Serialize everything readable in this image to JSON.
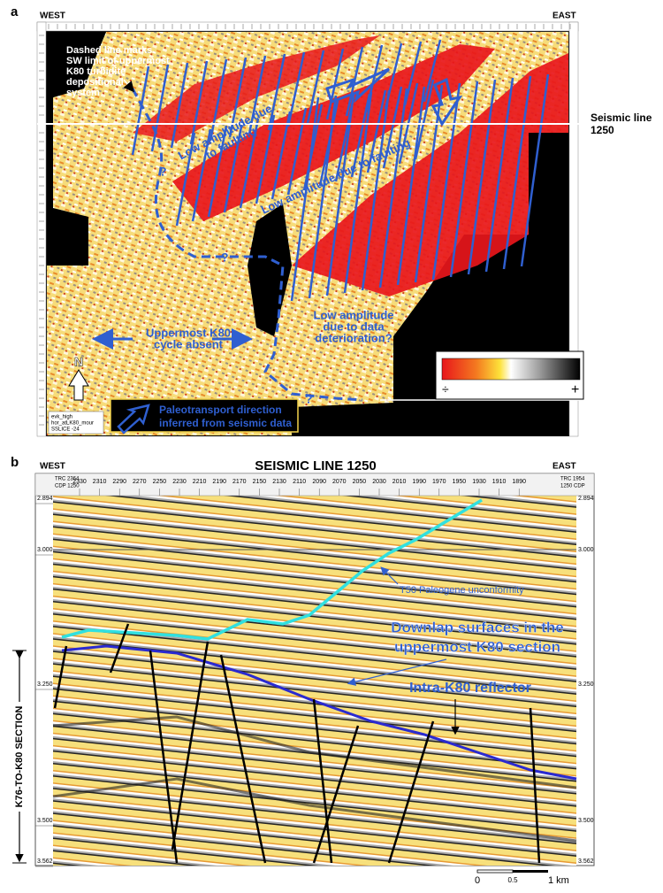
{
  "panel_a": {
    "label": "a",
    "west": "WEST",
    "east": "EAST",
    "note": [
      "Dashed line marks",
      "SW limit of uppermost",
      "K80 turbidite",
      "depositional",
      "system"
    ],
    "faulting_labels": [
      "Low amplitude due",
      "to faulting",
      "Low amplitude due to faulting"
    ],
    "seismic_line_label": [
      "Seismic line",
      "1250"
    ],
    "absent_label": [
      "Uppermost K80",
      "cycle absent"
    ],
    "deterioration_label": [
      "Low amplitude",
      "due to data",
      "deterioration?"
    ],
    "question_marks": [
      "?",
      "?",
      "?"
    ],
    "north": "N",
    "colorbar": {
      "low": "÷",
      "high": "+"
    },
    "info_box": [
      "evk_high",
      "hor_atLK80_mour",
      "SSLICE -24"
    ],
    "legend": [
      "Paleotransport direction",
      "inferred from seismic data"
    ]
  },
  "panel_b": {
    "label": "b",
    "west": "WEST",
    "title": "SEISMIC LINE 1250",
    "east": "EAST",
    "trace_header_left": [
      "TRC 2364",
      "CDP 1250"
    ],
    "trace_header_right": [
      "TRC 1954",
      "1250 CDP"
    ],
    "cdp_labels": [
      "2330",
      "2310",
      "2290",
      "2270",
      "2250",
      "2230",
      "2210",
      "2190",
      "2170",
      "2150",
      "2130",
      "2110",
      "2090",
      "2070",
      "2050",
      "2030",
      "2010",
      "1990",
      "1970",
      "1950",
      "1930",
      "1910",
      "1890"
    ],
    "time_labels": [
      "2.894",
      "3.000",
      "3.250",
      "3.500",
      "3.562"
    ],
    "unconformity": "T50 Paleogene unconformity",
    "downlap": [
      "Downlap surfaces in the",
      "uppermost K80 section"
    ],
    "reflector": "Intra-K80 reflector",
    "section_label": "K76-TO-K80 SECTION",
    "scale": [
      "0",
      "0.5",
      "1 km"
    ]
  }
}
